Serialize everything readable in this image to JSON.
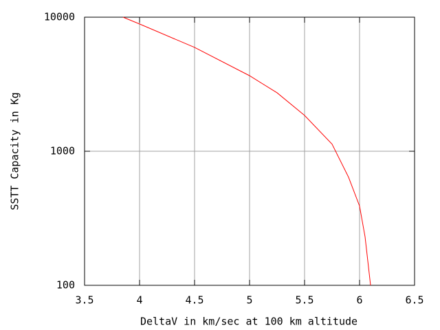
{
  "chart_data": {
    "type": "line",
    "x_label": "DeltaV in km/sec at 100 km altitude",
    "y_label": "SSTT Capacity in Kg",
    "x": [
      3.85,
      4.0,
      4.5,
      5.0,
      5.25,
      5.5,
      5.75,
      5.9,
      6.0,
      6.05,
      6.1
    ],
    "series": [
      {
        "color": "#ff0000",
        "values": [
          10000,
          8900,
          5950,
          3660,
          2730,
          1850,
          1130,
          640,
          390,
          230,
          100
        ]
      }
    ],
    "xlim": [
      3.5,
      6.5
    ],
    "xticks": [
      3.5,
      4,
      4.5,
      5,
      5.5,
      6,
      6.5
    ],
    "ylim": [
      100,
      10000
    ],
    "yticks": [
      100,
      1000,
      10000
    ],
    "log_y": true,
    "grid": true
  }
}
